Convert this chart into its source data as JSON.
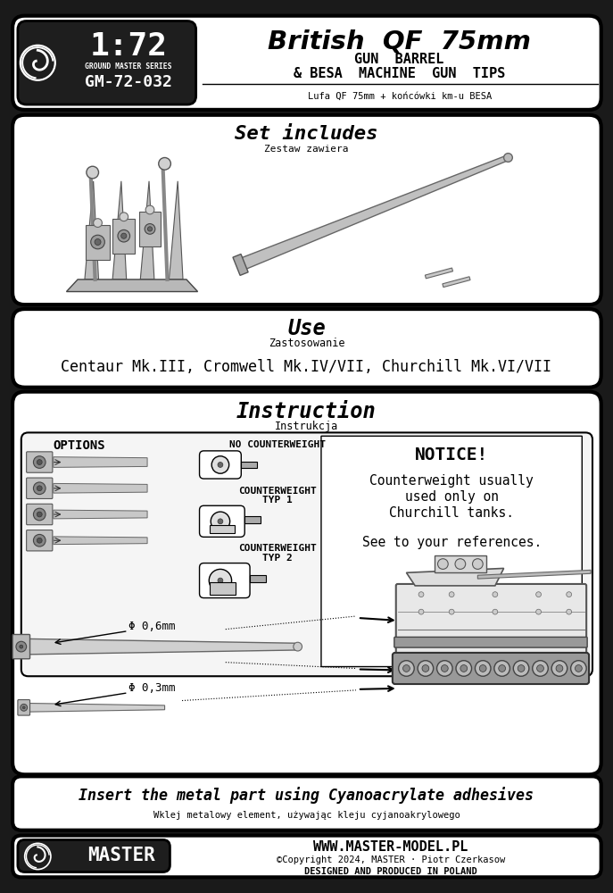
{
  "bg_color": "#1a1a1a",
  "white": "#ffffff",
  "black": "#000000",
  "dark_gray": "#1e1e1e",
  "panel_gray": "#f2f2f2",
  "mid_gray": "#aaaaaa",
  "light_gray": "#d0d0d0",
  "header_left_scale": "1:72",
  "header_left_series": "GROUND MASTER SERIES",
  "header_left_code": "GM-72-032",
  "header_right_title": "British  QF  75mm",
  "header_right_sub1": "GUN  BARREL",
  "header_right_sub2": "& BESA  MACHINE  GUN  TIPS",
  "header_right_polish": "Lufa QF 75mm + końcówki km-u BESA",
  "set_includes_title": "Set includes",
  "set_includes_polish": "Zestaw zawiera",
  "use_title": "Use",
  "use_polish": "Zastosowanie",
  "use_text": "Centaur Mk.III, Cromwell Mk.IV/VII, Churchill Mk.VI/VII",
  "instruction_title": "Instruction",
  "instruction_polish": "Instrukcja",
  "options_label": "OPTIONS",
  "no_cw_label": "NO COUNTERWEIGHT",
  "cw1_line1": "COUNTERWEIGHT",
  "cw1_line2": "TYP 1",
  "cw2_line1": "COUNTERWEIGHT",
  "cw2_line2": "TYP 2",
  "notice_title": "NOTICE!",
  "notice_line1": "Counterweight usually",
  "notice_line2": "used only on",
  "notice_line3": "Churchill tanks.",
  "notice_line4": "See to your references.",
  "dim1_label": "Φ 0,6mm",
  "dim2_label": "Φ 0,3mm",
  "insert_text": "Insert the metal part using Cyanoacrylate adhesives",
  "insert_polish": "Wklej metalowy element, używając kleju cyjanoakrylowego",
  "footer_website": "WWW.MASTER-MODEL.PL",
  "footer_copyright": "©Copyright 2024, MASTER · Piotr Czerkasow",
  "footer_produced": "DESIGNED AND PRODUCED IN POLAND",
  "footer_brand": "MASTER"
}
